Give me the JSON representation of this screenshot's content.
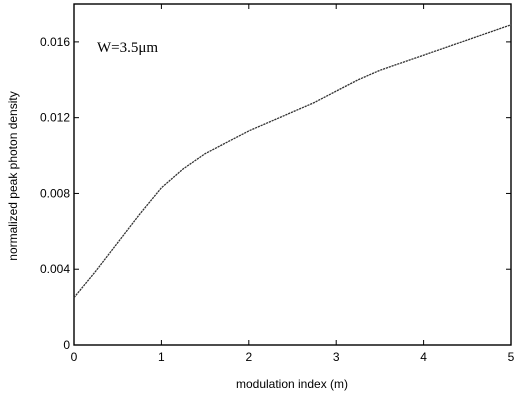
{
  "chart_data": {
    "type": "line",
    "title": "",
    "xlabel": "modulation index (m)",
    "ylabel": "normalized peak photon density",
    "xlim": [
      0,
      5
    ],
    "ylim": [
      0,
      0.018
    ],
    "x_ticks": [
      0,
      1,
      2,
      3,
      4,
      5
    ],
    "x_tick_labels": [
      "0",
      "1",
      "2",
      "3",
      "4",
      "5"
    ],
    "y_ticks": [
      0,
      0.004,
      0.008,
      0.012,
      0.016
    ],
    "y_tick_labels": [
      "0",
      "0.004",
      "0.008",
      "0.012",
      "0.016"
    ],
    "grid": false,
    "annotation": "W=3.5μm",
    "colors": {
      "line": "#333333",
      "axis": "#000000",
      "background": "#ffffff"
    },
    "series": [
      {
        "x": [
          0,
          0.25,
          0.5,
          0.75,
          1.0,
          1.25,
          1.5,
          1.75,
          2.0,
          2.25,
          2.5,
          2.75,
          3.0,
          3.25,
          3.5,
          3.75,
          4.0,
          4.25,
          4.5,
          4.75,
          5.0
        ],
        "y": [
          0.0025,
          0.0039,
          0.0054,
          0.0069,
          0.0083,
          0.0093,
          0.0101,
          0.0107,
          0.0113,
          0.0118,
          0.0123,
          0.0128,
          0.0134,
          0.014,
          0.0145,
          0.0149,
          0.0153,
          0.0157,
          0.0161,
          0.0165,
          0.0169
        ]
      }
    ]
  }
}
